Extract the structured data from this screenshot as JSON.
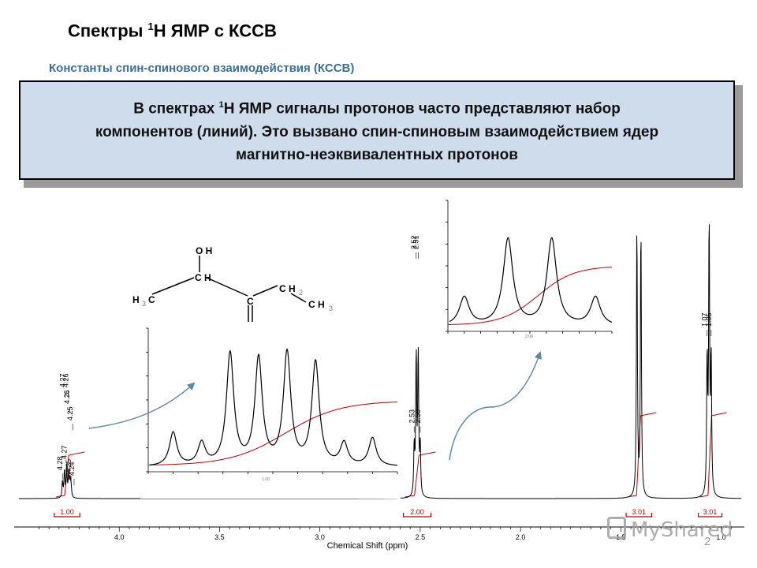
{
  "slide": {
    "title_prefix": "Спектры ",
    "title_sup": "1",
    "title_suffix": "H ЯМР с КССВ",
    "subtitle": "Константы спин-спинового взаимодействия (КССВ)",
    "box_l1_a": "В спектрах ",
    "box_l1_sup": "1",
    "box_l1_b": "H ЯМР сигналы протонов часто представляют набор",
    "box_l2": "компонентов (линий). Это вызвано спин-спиновым взаимодействием ядер",
    "box_l3": "магнитно-неэквивалентных протонов",
    "watermark": "MyShared",
    "page_number": "2"
  },
  "molecule": {
    "oh": "O H",
    "ch": "C H",
    "ch3_left_h": "H",
    "ch3_left_sub": "3",
    "ch3_left_c": "C",
    "c": "C",
    "o": "O",
    "ch2": "C H",
    "ch2_sub": "2",
    "ch3_right": "C H",
    "ch3_right_sub": "3"
  },
  "chart_data": {
    "type": "line",
    "xlabel": "Chemical Shift (ppm)",
    "xlim": [
      4.5,
      0.9
    ],
    "x_ticks": [
      "4.0",
      "3.5",
      "3.0",
      "2.5",
      "2.0",
      "1.5",
      "1.0"
    ],
    "x_tick_values": [
      4.0,
      3.5,
      3.0,
      2.5,
      2.0,
      1.5,
      1.0
    ],
    "peaks": [
      {
        "ppm": 4.283,
        "height": 0.06
      },
      {
        "ppm": 4.273,
        "height": 0.1
      },
      {
        "ppm": 4.262,
        "height": 0.11
      },
      {
        "ppm": 4.252,
        "height": 0.09
      },
      {
        "ppm": 4.245,
        "height": 0.06
      },
      {
        "ppm": 4.24,
        "height": 0.04
      },
      {
        "ppm": 2.53,
        "height": 0.18
      },
      {
        "ppm": 2.52,
        "height": 0.52
      },
      {
        "ppm": 2.51,
        "height": 0.52
      },
      {
        "ppm": 2.5,
        "height": 0.18
      },
      {
        "ppm": 1.42,
        "height": 1.0
      },
      {
        "ppm": 1.4,
        "height": 1.0
      },
      {
        "ppm": 1.07,
        "height": 0.5
      },
      {
        "ppm": 1.06,
        "height": 1.0
      },
      {
        "ppm": 1.05,
        "height": 0.5
      }
    ],
    "peak_labels": [
      {
        "text": "4.28",
        "ppm": 4.283,
        "level": 0.08
      },
      {
        "text": "4.27",
        "ppm": 4.27,
        "level": 0.38
      },
      {
        "text": "4.27",
        "ppm": 4.262,
        "level": 0.12
      },
      {
        "text": "4.26",
        "ppm": 4.255,
        "level": 0.38
      },
      {
        "text": "4.26",
        "ppm": 4.248,
        "level": 0.32
      },
      {
        "text": "4.25",
        "ppm": 4.24,
        "level": 0.07
      },
      {
        "text": "4.25",
        "ppm": 4.232,
        "level": 0.26
      },
      {
        "text": "4.24",
        "ppm": 4.225,
        "level": 0.06
      },
      {
        "text": "2.53",
        "ppm": 2.53,
        "level": 0.25
      },
      {
        "text": "2.52",
        "ppm": 2.52,
        "level": 0.88
      },
      {
        "text": "2.51",
        "ppm": 2.51,
        "level": 0.88
      },
      {
        "text": "2.50",
        "ppm": 2.5,
        "level": 0.25
      },
      {
        "text": "1.42",
        "ppm": 1.42,
        "level": 1.2
      },
      {
        "text": "1.40",
        "ppm": 1.4,
        "level": 1.2
      },
      {
        "text": "1.07",
        "ppm": 1.07,
        "level": 0.6
      },
      {
        "text": "1.06",
        "ppm": 1.06,
        "level": 1.2
      },
      {
        "text": "1.05",
        "ppm": 1.05,
        "level": 0.6
      }
    ],
    "integrals": [
      {
        "label": "1.00",
        "from": 4.3,
        "to": 4.22
      },
      {
        "label": "2.00",
        "from": 2.56,
        "to": 2.47
      },
      {
        "label": "3.01",
        "from": 1.45,
        "to": 1.37
      },
      {
        "label": "3.01",
        "from": 1.09,
        "to": 1.02
      }
    ],
    "insets": [
      {
        "name": "quartet-4.26-expansion",
        "integral": "1.00",
        "peaks": [
          {
            "ppm": 4.29,
            "height": 0.3
          },
          {
            "ppm": 4.28,
            "height": 0.2
          },
          {
            "ppm": 4.27,
            "height": 1.0
          },
          {
            "ppm": 4.26,
            "height": 0.95
          },
          {
            "ppm": 4.26,
            "height": 1.0
          },
          {
            "ppm": 4.25,
            "height": 0.92
          },
          {
            "ppm": 4.25,
            "height": 0.2
          },
          {
            "ppm": 4.24,
            "height": 0.25
          }
        ]
      },
      {
        "name": "quartet-2.51-expansion",
        "integral": "2.00",
        "peaks": [
          {
            "ppm": 2.53,
            "height": 0.28
          },
          {
            "ppm": 2.52,
            "height": 0.85
          },
          {
            "ppm": 2.51,
            "height": 0.85
          },
          {
            "ppm": 2.5,
            "height": 0.28
          }
        ]
      }
    ],
    "colors": {
      "spectrum": "#000000",
      "integral": "#c00000",
      "arrow": "#5a88a8",
      "box": "#cfdcec"
    }
  }
}
